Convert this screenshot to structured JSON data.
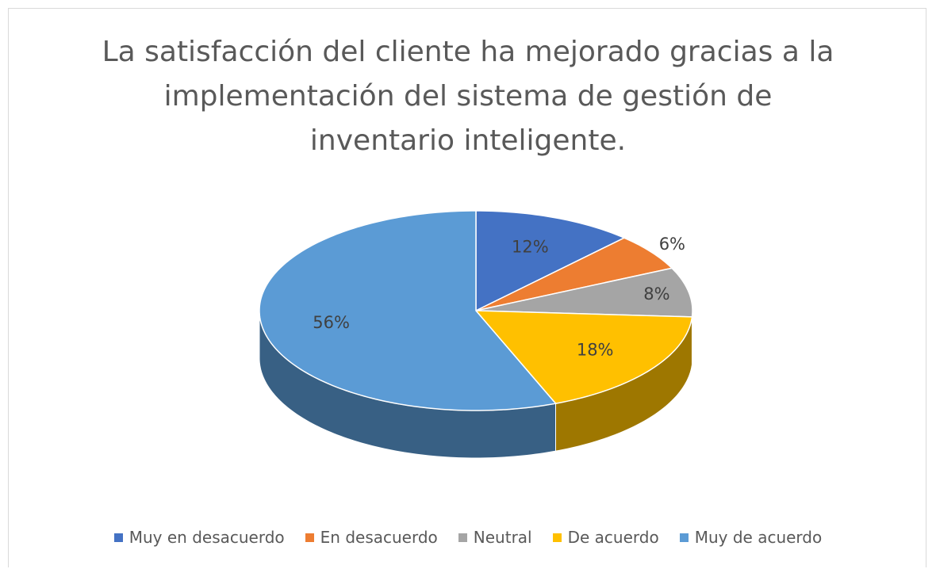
{
  "chart_data": {
    "type": "pie",
    "title": "La satisfacción del cliente ha mejorado gracias a la\nimplementación del sistema de gestión de\ninventario inteligente.",
    "categories": [
      "Muy en desacuerdo",
      "En desacuerdo",
      "Neutral",
      "De acuerdo",
      "Muy de acuerdo"
    ],
    "values": [
      12,
      6,
      8,
      18,
      56
    ],
    "value_labels": [
      "12%",
      "6%",
      "8%",
      "18%",
      "56%"
    ],
    "colors": [
      "#4472c4",
      "#ed7d31",
      "#a5a5a5",
      "#ffc000",
      "#5b9bd5"
    ],
    "legend": "bottom"
  }
}
